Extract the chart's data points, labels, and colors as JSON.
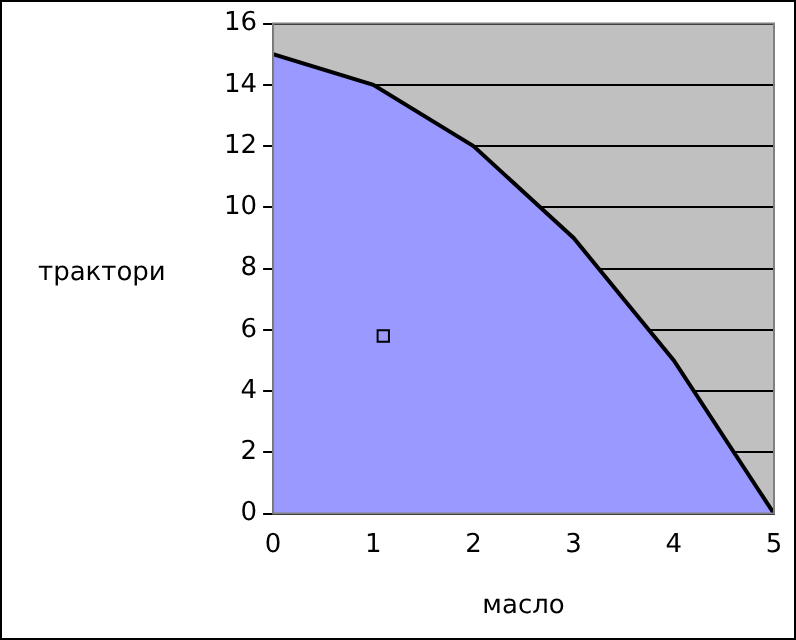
{
  "chart_data": {
    "type": "area",
    "xlabel": "масло",
    "ylabel": "трактори",
    "xlim": [
      0,
      5
    ],
    "xticks": [
      0,
      1,
      2,
      3,
      4,
      5
    ],
    "ylim": [
      0,
      16
    ],
    "yticks": [
      0,
      2,
      4,
      6,
      8,
      10,
      12,
      14,
      16
    ],
    "grid": "y",
    "series": [
      {
        "color": "#9999ff",
        "marker": "none",
        "x": [
          0,
          1,
          2,
          3,
          4,
          5
        ],
        "values": [
          15,
          14,
          12,
          9,
          5,
          0
        ]
      },
      {
        "type": "scatter",
        "color": "#000000",
        "marker": "square",
        "x": [
          1.1
        ],
        "values": [
          5.8
        ]
      }
    ]
  }
}
